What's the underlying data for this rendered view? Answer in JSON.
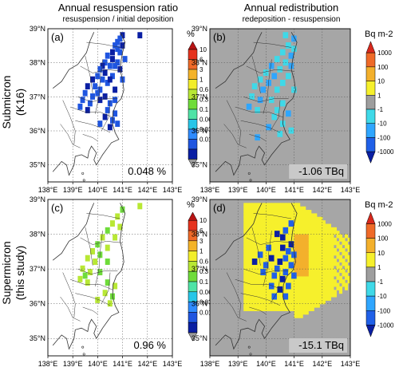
{
  "columns": [
    {
      "title": "Annual resuspension ratio",
      "subtitle": "resuspension / initial deposition"
    },
    {
      "title": "Annual redistribution",
      "subtitle": "redeposition - resuspension"
    }
  ],
  "rows": [
    {
      "label_line1": "Submicron",
      "label_line2": "(K16)"
    },
    {
      "label_line1": "Supermicron",
      "label_line2": "(this study)"
    }
  ],
  "colors": {
    "ocean_grey": "#a6a6a6",
    "map_line": "#333333",
    "ratio_scale": [
      "#9b9b9b",
      "#0a1fa3",
      "#1f55e0",
      "#2f8bff",
      "#27c6e8",
      "#4fe3a6",
      "#6fdc3a",
      "#b8e834",
      "#f3ee2a",
      "#f4b328",
      "#f06a28",
      "#e6331e",
      "#b81414"
    ],
    "redist_scale": [
      "#0a1fa3",
      "#2060e8",
      "#2fa6ff",
      "#3fd9e8",
      "#9e9e9e",
      "#f6f02c",
      "#f3b02c",
      "#ef6a28",
      "#d8281c"
    ]
  },
  "chart_data": [
    {
      "type": "heatmap",
      "panel": "(a)",
      "title": "Annual resuspension ratio",
      "subtitle": "resuspension / initial deposition",
      "row_label": "Submicron (K16)",
      "colorbar_unit": "%",
      "colorbar_ticks": [
        "10",
        "6",
        "3",
        "1",
        "0.6",
        "0.3",
        "0.1",
        "0.06",
        "0.03",
        "0.01"
      ],
      "annotation": "0.048 %",
      "x_ticks": [
        "138°E",
        "139°E",
        "140°E",
        "141°E",
        "142°E",
        "143°E"
      ],
      "y_ticks": [
        "35°N",
        "36°N",
        "37°N",
        "38°N",
        "39°N"
      ],
      "xlim": [
        138,
        143
      ],
      "ylim": [
        34.5,
        39
      ],
      "grid": true
    },
    {
      "type": "heatmap",
      "panel": "(b)",
      "title": "Annual redistribution",
      "subtitle": "redeposition - resuspension",
      "row_label": "Submicron (K16)",
      "colorbar_unit": "Bq m-2",
      "colorbar_ticks": [
        "1000",
        "100",
        "10",
        "1",
        "-1",
        "-10",
        "-100",
        "-1000"
      ],
      "annotation": "-1.06 TBq",
      "x_ticks": [
        "138°E",
        "139°E",
        "140°E",
        "141°E",
        "142°E",
        "143°E"
      ],
      "y_ticks": [
        "35°N",
        "36°N",
        "37°N",
        "38°N",
        "39°N"
      ],
      "xlim": [
        138,
        143
      ],
      "ylim": [
        34.5,
        39
      ],
      "grid": true
    },
    {
      "type": "heatmap",
      "panel": "(c)",
      "title": "Annual resuspension ratio",
      "subtitle": "resuspension / initial deposition",
      "row_label": "Supermicron (this study)",
      "colorbar_unit": "%",
      "colorbar_ticks": [
        "10",
        "6",
        "3",
        "1",
        "0.6",
        "0.3",
        "0.1",
        "0.06",
        "0.03",
        "0.01"
      ],
      "annotation": "0.96 %",
      "x_ticks": [
        "138°E",
        "139°E",
        "140°E",
        "141°E",
        "142°E",
        "143°E"
      ],
      "y_ticks": [
        "35°N",
        "36°N",
        "37°N",
        "38°N",
        "39°N"
      ],
      "xlim": [
        138,
        143
      ],
      "ylim": [
        34.5,
        39
      ],
      "grid": true
    },
    {
      "type": "heatmap",
      "panel": "(d)",
      "title": "Annual redistribution",
      "subtitle": "redeposition - resuspension",
      "row_label": "Supermicron (this study)",
      "colorbar_unit": "Bq m-2",
      "colorbar_ticks": [
        "1000",
        "100",
        "10",
        "1",
        "-1",
        "-10",
        "-100",
        "-1000"
      ],
      "annotation": "-15.1 TBq",
      "x_ticks": [
        "138°E",
        "139°E",
        "140°E",
        "141°E",
        "142°E",
        "143°E"
      ],
      "y_ticks": [
        "35°N",
        "36°N",
        "37°N",
        "38°N",
        "39°N"
      ],
      "xlim": [
        138,
        143
      ],
      "ylim": [
        34.5,
        39
      ],
      "grid": true
    }
  ]
}
